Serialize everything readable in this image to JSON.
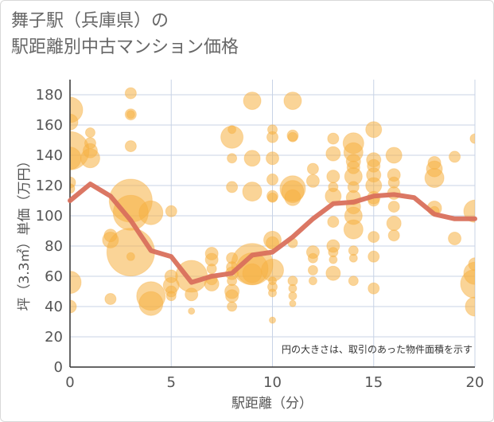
{
  "title_lines": [
    "舞子駅（兵庫県）の",
    "駅距離別中古マンション価格"
  ],
  "note": "円の大きさは、取引のあった物件面積を示す",
  "colors": {
    "bubble_fill": "#f5b041",
    "bubble_opacity": 0.55,
    "line": "#d9705c",
    "grid": "#c8d3e6",
    "axis": "#333333"
  },
  "chart_data": {
    "type": "scatter",
    "xlabel": "駅距離（分）",
    "ylabel": "坪（3.3㎡）単価（万円）",
    "xlim": [
      0,
      20
    ],
    "ylim": [
      0,
      190
    ],
    "xticks": [
      0,
      5,
      10,
      15,
      20
    ],
    "yticks": [
      0,
      20,
      40,
      60,
      80,
      100,
      120,
      140,
      160,
      180
    ],
    "grid": true,
    "line_series": {
      "x": [
        0,
        1,
        2,
        3,
        4,
        5,
        6,
        7,
        8,
        9,
        10,
        11,
        12,
        13,
        14,
        15,
        16,
        17,
        18,
        19,
        20
      ],
      "values": [
        110,
        121,
        113,
        97,
        77,
        73,
        56,
        60,
        62,
        74,
        76,
        86,
        98,
        108,
        109,
        113,
        114,
        112,
        101,
        98,
        98
      ]
    },
    "points": [
      {
        "x": 0,
        "y": 170,
        "s": 16
      },
      {
        "x": 0,
        "y": 162,
        "s": 10
      },
      {
        "x": 0,
        "y": 143,
        "s": 24
      },
      {
        "x": 0,
        "y": 138,
        "s": 14
      },
      {
        "x": 0,
        "y": 122,
        "s": 7
      },
      {
        "x": 0,
        "y": 118,
        "s": 6
      },
      {
        "x": 0,
        "y": 56,
        "s": 14
      },
      {
        "x": 0,
        "y": 40,
        "s": 8
      },
      {
        "x": 1,
        "y": 155,
        "s": 6
      },
      {
        "x": 1,
        "y": 148,
        "s": 7
      },
      {
        "x": 1,
        "y": 143,
        "s": 9
      },
      {
        "x": 1,
        "y": 138,
        "s": 12
      },
      {
        "x": 2,
        "y": 87,
        "s": 8
      },
      {
        "x": 2,
        "y": 84,
        "s": 10
      },
      {
        "x": 2,
        "y": 45,
        "s": 7
      },
      {
        "x": 3,
        "y": 181,
        "s": 7
      },
      {
        "x": 3,
        "y": 167,
        "s": 7
      },
      {
        "x": 3,
        "y": 167,
        "s": 5
      },
      {
        "x": 3,
        "y": 146,
        "s": 7
      },
      {
        "x": 3,
        "y": 110,
        "s": 27
      },
      {
        "x": 3,
        "y": 102,
        "s": 22
      },
      {
        "x": 3,
        "y": 76,
        "s": 30
      },
      {
        "x": 3,
        "y": 73,
        "s": 5
      },
      {
        "x": 4,
        "y": 102,
        "s": 15
      },
      {
        "x": 4,
        "y": 47,
        "s": 18
      },
      {
        "x": 4,
        "y": 42,
        "s": 15
      },
      {
        "x": 5,
        "y": 103,
        "s": 7
      },
      {
        "x": 5,
        "y": 60,
        "s": 8
      },
      {
        "x": 5,
        "y": 54,
        "s": 10
      },
      {
        "x": 5,
        "y": 50,
        "s": 7
      },
      {
        "x": 5,
        "y": 47,
        "s": 6
      },
      {
        "x": 6,
        "y": 60,
        "s": 20
      },
      {
        "x": 6,
        "y": 48,
        "s": 8
      },
      {
        "x": 6,
        "y": 37,
        "s": 4
      },
      {
        "x": 7,
        "y": 75,
        "s": 8
      },
      {
        "x": 7,
        "y": 71,
        "s": 8
      },
      {
        "x": 7,
        "y": 65,
        "s": 6
      },
      {
        "x": 7,
        "y": 58,
        "s": 7
      },
      {
        "x": 7,
        "y": 55,
        "s": 9
      },
      {
        "x": 8,
        "y": 157,
        "s": 5
      },
      {
        "x": 8,
        "y": 152,
        "s": 14
      },
      {
        "x": 8,
        "y": 138,
        "s": 6
      },
      {
        "x": 8,
        "y": 119,
        "s": 7
      },
      {
        "x": 8,
        "y": 72,
        "s": 7
      },
      {
        "x": 8,
        "y": 66,
        "s": 7
      },
      {
        "x": 8,
        "y": 62,
        "s": 8
      },
      {
        "x": 8,
        "y": 57,
        "s": 6
      },
      {
        "x": 8,
        "y": 50,
        "s": 9
      },
      {
        "x": 8,
        "y": 47,
        "s": 8
      },
      {
        "x": 8,
        "y": 40,
        "s": 6
      },
      {
        "x": 9,
        "y": 176,
        "s": 11
      },
      {
        "x": 9,
        "y": 138,
        "s": 10
      },
      {
        "x": 9,
        "y": 116,
        "s": 12
      },
      {
        "x": 9,
        "y": 68,
        "s": 26
      },
      {
        "x": 9,
        "y": 65,
        "s": 20
      },
      {
        "x": 9,
        "y": 62,
        "s": 12
      },
      {
        "x": 10,
        "y": 157,
        "s": 6
      },
      {
        "x": 10,
        "y": 152,
        "s": 7
      },
      {
        "x": 10,
        "y": 138,
        "s": 8
      },
      {
        "x": 10,
        "y": 124,
        "s": 7
      },
      {
        "x": 10,
        "y": 113,
        "s": 7
      },
      {
        "x": 10,
        "y": 112,
        "s": 6
      },
      {
        "x": 10,
        "y": 84,
        "s": 11
      },
      {
        "x": 10,
        "y": 82,
        "s": 8
      },
      {
        "x": 10,
        "y": 64,
        "s": 14
      },
      {
        "x": 10,
        "y": 57,
        "s": 5
      },
      {
        "x": 10,
        "y": 53,
        "s": 6
      },
      {
        "x": 10,
        "y": 49,
        "s": 5
      },
      {
        "x": 10,
        "y": 31,
        "s": 4
      },
      {
        "x": 11,
        "y": 176,
        "s": 11
      },
      {
        "x": 11,
        "y": 153,
        "s": 7
      },
      {
        "x": 11,
        "y": 152,
        "s": 6
      },
      {
        "x": 11,
        "y": 118,
        "s": 16
      },
      {
        "x": 11,
        "y": 116,
        "s": 14
      },
      {
        "x": 11,
        "y": 112,
        "s": 10
      },
      {
        "x": 11,
        "y": 82,
        "s": 6
      },
      {
        "x": 11,
        "y": 57,
        "s": 6
      },
      {
        "x": 11,
        "y": 52,
        "s": 5
      },
      {
        "x": 11,
        "y": 47,
        "s": 5
      },
      {
        "x": 11,
        "y": 42,
        "s": 4
      },
      {
        "x": 12,
        "y": 131,
        "s": 7
      },
      {
        "x": 12,
        "y": 123,
        "s": 8
      },
      {
        "x": 12,
        "y": 76,
        "s": 8
      },
      {
        "x": 12,
        "y": 72,
        "s": 6
      },
      {
        "x": 12,
        "y": 64,
        "s": 6
      },
      {
        "x": 12,
        "y": 57,
        "s": 5
      },
      {
        "x": 13,
        "y": 151,
        "s": 7
      },
      {
        "x": 13,
        "y": 141,
        "s": 9
      },
      {
        "x": 13,
        "y": 126,
        "s": 8
      },
      {
        "x": 13,
        "y": 119,
        "s": 6
      },
      {
        "x": 13,
        "y": 113,
        "s": 10
      },
      {
        "x": 13,
        "y": 96,
        "s": 7
      },
      {
        "x": 13,
        "y": 80,
        "s": 8
      },
      {
        "x": 13,
        "y": 76,
        "s": 6
      },
      {
        "x": 13,
        "y": 71,
        "s": 5
      },
      {
        "x": 13,
        "y": 62,
        "s": 9
      },
      {
        "x": 14,
        "y": 148,
        "s": 13
      },
      {
        "x": 14,
        "y": 142,
        "s": 12
      },
      {
        "x": 14,
        "y": 136,
        "s": 9
      },
      {
        "x": 14,
        "y": 132,
        "s": 8
      },
      {
        "x": 14,
        "y": 126,
        "s": 11
      },
      {
        "x": 14,
        "y": 119,
        "s": 7
      },
      {
        "x": 14,
        "y": 112,
        "s": 9
      },
      {
        "x": 14,
        "y": 106,
        "s": 9
      },
      {
        "x": 14,
        "y": 100,
        "s": 11
      },
      {
        "x": 14,
        "y": 91,
        "s": 12
      },
      {
        "x": 14,
        "y": 77,
        "s": 6
      },
      {
        "x": 14,
        "y": 72,
        "s": 5
      },
      {
        "x": 14,
        "y": 57,
        "s": 6
      },
      {
        "x": 15,
        "y": 157,
        "s": 10
      },
      {
        "x": 15,
        "y": 137,
        "s": 9
      },
      {
        "x": 15,
        "y": 133,
        "s": 8
      },
      {
        "x": 15,
        "y": 127,
        "s": 9
      },
      {
        "x": 15,
        "y": 120,
        "s": 10
      },
      {
        "x": 15,
        "y": 112,
        "s": 8
      },
      {
        "x": 15,
        "y": 110,
        "s": 7
      },
      {
        "x": 15,
        "y": 86,
        "s": 7
      },
      {
        "x": 15,
        "y": 73,
        "s": 7
      },
      {
        "x": 15,
        "y": 52,
        "s": 7
      },
      {
        "x": 16,
        "y": 140,
        "s": 10
      },
      {
        "x": 16,
        "y": 127,
        "s": 8
      },
      {
        "x": 16,
        "y": 122,
        "s": 7
      },
      {
        "x": 16,
        "y": 115,
        "s": 8
      },
      {
        "x": 16,
        "y": 106,
        "s": 7
      },
      {
        "x": 16,
        "y": 95,
        "s": 9
      },
      {
        "x": 16,
        "y": 87,
        "s": 7
      },
      {
        "x": 18,
        "y": 135,
        "s": 8
      },
      {
        "x": 18,
        "y": 131,
        "s": 10
      },
      {
        "x": 18,
        "y": 125,
        "s": 12
      },
      {
        "x": 18,
        "y": 105,
        "s": 9
      },
      {
        "x": 18,
        "y": 103,
        "s": 6
      },
      {
        "x": 19,
        "y": 139,
        "s": 7
      },
      {
        "x": 19,
        "y": 85,
        "s": 8
      },
      {
        "x": 20,
        "y": 151,
        "s": 6
      },
      {
        "x": 20,
        "y": 103,
        "s": 14
      },
      {
        "x": 20,
        "y": 68,
        "s": 8
      },
      {
        "x": 20,
        "y": 62,
        "s": 14
      },
      {
        "x": 20,
        "y": 55,
        "s": 18
      },
      {
        "x": 20,
        "y": 40,
        "s": 12
      }
    ]
  }
}
